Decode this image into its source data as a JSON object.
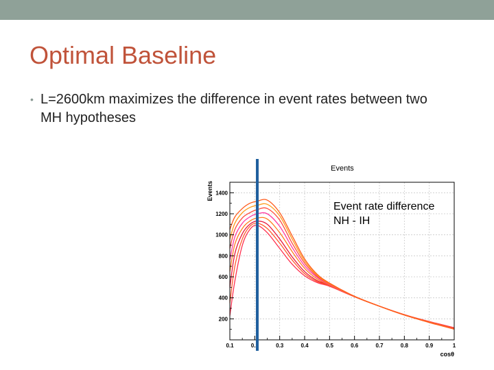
{
  "slide": {
    "title": "Optimal Baseline",
    "bullet": "L=2600km maximizes the difference in event rates between two MH hypotheses",
    "annotation_line1": "Event rate difference",
    "annotation_line2": "NH - IH"
  },
  "colors": {
    "top_band": "#8fa198",
    "title": "#c0533a",
    "marker_line": "#1f5f9e"
  },
  "chart_data": {
    "type": "line",
    "title": "Events",
    "xlabel": "cosθ",
    "ylabel": "Events",
    "xlim": [
      0.1,
      1.0
    ],
    "ylim": [
      0,
      1500
    ],
    "xticks": [
      0.1,
      0.2,
      0.3,
      0.4,
      0.5,
      0.6,
      0.7,
      0.8,
      0.9,
      1
    ],
    "xtick_labels": [
      "0.1",
      "0.2",
      "0.3",
      "0.4",
      "0.5",
      "0.6",
      "0.7",
      "0.8",
      "0.9",
      "1"
    ],
    "yticks": [
      200,
      400,
      600,
      800,
      1000,
      1200,
      1400
    ],
    "ytick_labels": [
      "200",
      "400",
      "600",
      "800",
      "1000",
      "1200",
      "1400"
    ],
    "grid": true,
    "marker_x": 0.21,
    "x": [
      0.1,
      0.12,
      0.15,
      0.18,
      0.21,
      0.25,
      0.3,
      0.35,
      0.4,
      0.45,
      0.5,
      0.6,
      0.7,
      0.8,
      0.9,
      1.0
    ],
    "series": [
      {
        "color": "#ff2e4d",
        "values": [
          230,
          560,
          900,
          1050,
          1090,
          1020,
          870,
          720,
          610,
          545,
          510,
          410,
          320,
          240,
          175,
          115
        ]
      },
      {
        "color": "#ff5a2a",
        "values": [
          350,
          700,
          960,
          1080,
          1110,
          1060,
          920,
          760,
          630,
          555,
          515,
          410,
          320,
          240,
          172,
          112
        ]
      },
      {
        "color": "#e8183c",
        "values": [
          500,
          820,
          1010,
          1100,
          1130,
          1100,
          960,
          790,
          650,
          565,
          520,
          412,
          320,
          238,
          170,
          110
        ]
      },
      {
        "color": "#ff7a1a",
        "values": [
          650,
          910,
          1060,
          1130,
          1160,
          1150,
          1020,
          840,
          680,
          580,
          520,
          412,
          320,
          238,
          170,
          108
        ]
      },
      {
        "color": "#ff3aa0",
        "values": [
          760,
          980,
          1110,
          1170,
          1200,
          1200,
          1080,
          880,
          705,
          595,
          525,
          413,
          320,
          237,
          168,
          106
        ]
      },
      {
        "color": "#ff4a3a",
        "values": [
          870,
          1050,
          1160,
          1210,
          1240,
          1250,
          1140,
          920,
          730,
          605,
          530,
          413,
          320,
          236,
          167,
          104
        ]
      },
      {
        "color": "#ff9a1a",
        "values": [
          960,
          1110,
          1210,
          1260,
          1280,
          1290,
          1180,
          960,
          750,
          615,
          535,
          414,
          320,
          236,
          166,
          103
        ]
      },
      {
        "color": "#ff5a1a",
        "values": [
          1050,
          1170,
          1250,
          1300,
          1320,
          1330,
          1210,
          990,
          770,
          625,
          540,
          415,
          321,
          236,
          165,
          102
        ]
      }
    ]
  }
}
